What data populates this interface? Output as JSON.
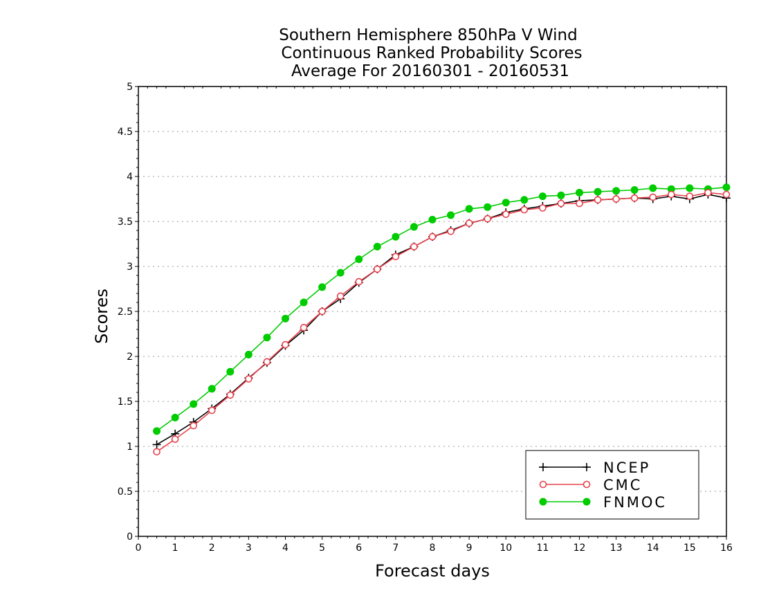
{
  "chart_data": {
    "type": "line",
    "title": [
      "Southern Hemisphere 850hPa V Wind",
      "Continuous Ranked Probability Scores",
      "Average For 20160301 - 20160531"
    ],
    "xlabel": "Forecast days",
    "ylabel": "Scores",
    "xlim": [
      0,
      16
    ],
    "ylim": [
      0,
      5
    ],
    "xticks": [
      0,
      1,
      2,
      3,
      4,
      5,
      6,
      7,
      8,
      9,
      10,
      11,
      12,
      13,
      14,
      15,
      16
    ],
    "yticks": [
      0,
      0.5,
      1,
      1.5,
      2,
      2.5,
      3,
      3.5,
      4,
      4.5,
      5
    ],
    "ytick_labels": [
      "0",
      "0.5",
      "1",
      "1.5",
      "2",
      "2.5",
      "3",
      "3.5",
      "4",
      "4.5",
      "5"
    ],
    "grid": true,
    "legend_position": "bottom-right",
    "x": [
      0.5,
      1,
      1.5,
      2,
      2.5,
      3,
      3.5,
      4,
      4.5,
      5,
      5.5,
      6,
      6.5,
      7,
      7.5,
      8,
      8.5,
      9,
      9.5,
      10,
      10.5,
      11,
      11.5,
      12,
      12.5,
      13,
      13.5,
      14,
      14.5,
      15,
      15.5,
      16
    ],
    "series": [
      {
        "name": "NCEP",
        "color": "#000000",
        "marker": "plus",
        "values": [
          1.02,
          1.14,
          1.27,
          1.42,
          1.58,
          1.76,
          1.93,
          2.12,
          2.29,
          2.5,
          2.64,
          2.82,
          2.97,
          3.13,
          3.22,
          3.33,
          3.4,
          3.48,
          3.53,
          3.6,
          3.64,
          3.67,
          3.7,
          3.73,
          3.74,
          3.75,
          3.76,
          3.75,
          3.78,
          3.75,
          3.8,
          3.76
        ]
      },
      {
        "name": "CMC",
        "color": "#e8404a",
        "marker": "open-circle",
        "values": [
          0.94,
          1.08,
          1.23,
          1.4,
          1.57,
          1.75,
          1.94,
          2.13,
          2.32,
          2.5,
          2.67,
          2.83,
          2.97,
          3.11,
          3.22,
          3.33,
          3.39,
          3.48,
          3.53,
          3.58,
          3.63,
          3.65,
          3.7,
          3.7,
          3.74,
          3.75,
          3.76,
          3.77,
          3.8,
          3.78,
          3.82,
          3.8
        ]
      },
      {
        "name": "FNMOC",
        "color": "#00cc00",
        "marker": "filled-circle",
        "values": [
          1.17,
          1.32,
          1.47,
          1.64,
          1.83,
          2.02,
          2.21,
          2.42,
          2.6,
          2.77,
          2.93,
          3.08,
          3.22,
          3.33,
          3.44,
          3.52,
          3.57,
          3.64,
          3.66,
          3.71,
          3.74,
          3.78,
          3.79,
          3.82,
          3.83,
          3.84,
          3.85,
          3.87,
          3.86,
          3.87,
          3.86,
          3.88
        ]
      }
    ]
  }
}
